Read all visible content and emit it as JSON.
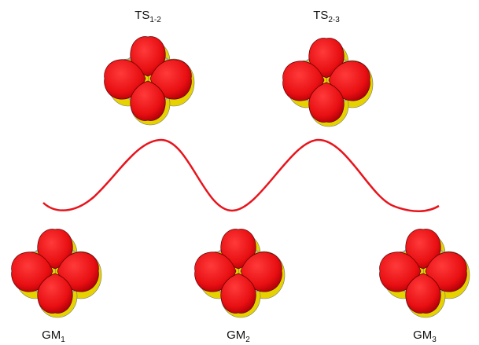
{
  "labels": [
    {
      "text": "TS",
      "sub": "1-2"
    },
    {
      "text": "TS",
      "sub": "2-3"
    },
    {
      "text": "GM",
      "sub": "1"
    },
    {
      "text": "GM",
      "sub": "2"
    },
    {
      "text": "GM",
      "sub": "3"
    }
  ]
}
